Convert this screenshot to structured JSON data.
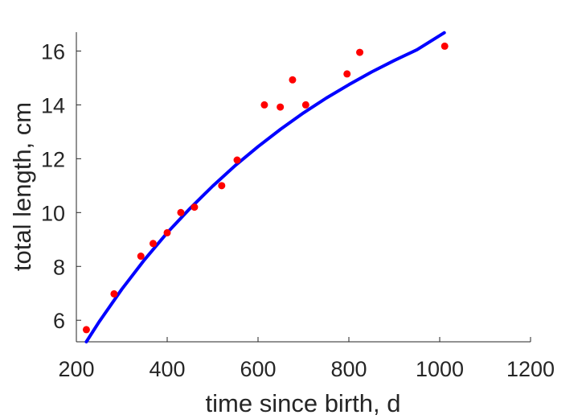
{
  "chart_data": {
    "type": "scatter",
    "title": "",
    "xlabel": "time since birth, d",
    "ylabel": "total length, cm",
    "xlim": [
      200,
      1200
    ],
    "ylim": [
      5.2,
      16.7
    ],
    "xticks": [
      200,
      400,
      600,
      800,
      1000,
      1200
    ],
    "yticks": [
      6,
      8,
      10,
      12,
      14,
      16
    ],
    "grid": false,
    "legend": "none",
    "series": [
      {
        "type": "scatter",
        "color": "#ff0000",
        "x": [
          222,
          283,
          342,
          369,
          400,
          430,
          460,
          520,
          554,
          614,
          649,
          676,
          705,
          796,
          824,
          1011
        ],
        "y": [
          5.65,
          6.98,
          8.38,
          8.85,
          9.25,
          10.0,
          10.2,
          11.0,
          11.95,
          14.0,
          13.92,
          14.93,
          14.0,
          15.15,
          15.95,
          16.18
        ]
      },
      {
        "type": "line",
        "color": "#0000ff",
        "x": [
          222,
          250,
          300,
          350,
          400,
          450,
          500,
          550,
          600,
          650,
          700,
          750,
          800,
          850,
          900,
          950,
          1010
        ],
        "y": [
          5.2,
          5.94,
          7.15,
          8.25,
          9.25,
          10.15,
          10.98,
          11.75,
          12.45,
          13.1,
          13.7,
          14.25,
          14.75,
          15.22,
          15.65,
          16.05,
          16.68
        ]
      }
    ]
  }
}
